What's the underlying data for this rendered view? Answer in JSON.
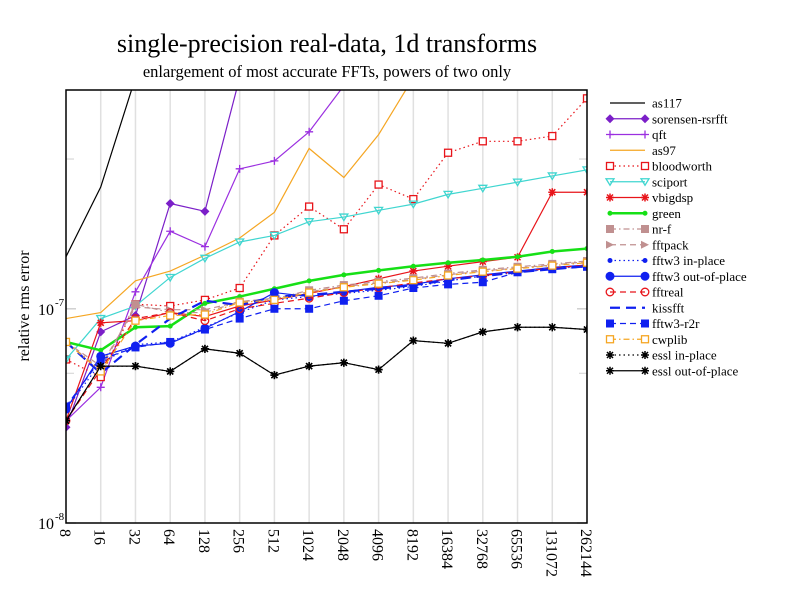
{
  "chart_data": {
    "type": "line",
    "title": "single-precision real-data, 1d transforms",
    "subtitle": "enlargement of most accurate FFTs, powers of two only",
    "xlabel": "",
    "ylabel": "relative rms error",
    "yscale": "log",
    "ylim": [
      1e-08,
      1.05e-06
    ],
    "y_ticks": [
      {
        "mantissa": "10",
        "exponent": "-8",
        "value": 1e-08
      },
      {
        "mantissa": "10",
        "exponent": "-7",
        "value": 1e-07
      }
    ],
    "x": [
      "8",
      "16",
      "32",
      "64",
      "128",
      "256",
      "512",
      "1024",
      "2048",
      "4096",
      "8192",
      "16384",
      "32768",
      "65536",
      "131072",
      "262144"
    ],
    "grid": "vertical",
    "legend_position": "right",
    "series": [
      {
        "name": "as117",
        "color": "#000000",
        "line": "solid",
        "marker": "none",
        "values": [
          1.75e-07,
          3.7e-07,
          1.2e-06,
          null,
          null,
          null,
          null,
          null,
          null,
          null,
          null,
          null,
          null,
          null,
          null,
          null
        ]
      },
      {
        "name": "sorensen-rsrfft",
        "color": "#7b1fc8",
        "line": "solid",
        "marker": "diamond",
        "values": [
          2.8e-08,
          7.8e-08,
          9.3e-08,
          3.1e-07,
          2.85e-07,
          1.2e-06,
          null,
          null,
          null,
          null,
          null,
          null,
          null,
          null,
          null,
          null
        ]
      },
      {
        "name": "qft",
        "color": "#9b2fe0",
        "line": "solid",
        "marker": "plus",
        "values": [
          3e-08,
          4.3e-08,
          1.2e-07,
          2.3e-07,
          1.95e-07,
          4.5e-07,
          4.9e-07,
          6.7e-07,
          1.1e-06,
          null,
          null,
          null,
          null,
          null,
          null,
          null
        ]
      },
      {
        "name": "as97",
        "color": "#f5a623",
        "line": "solid",
        "marker": "none",
        "values": [
          9e-08,
          9.6e-08,
          1.35e-07,
          1.5e-07,
          1.78e-07,
          2.14e-07,
          2.82e-07,
          5.6e-07,
          4.1e-07,
          6.5e-07,
          1.2e-06,
          null,
          null,
          null,
          null,
          null
        ]
      },
      {
        "name": "bloodworth",
        "color": "#e8141a",
        "line": "dotted",
        "marker": "square-open",
        "values": [
          5.8e-08,
          4.8e-08,
          1.05e-07,
          1.03e-07,
          1.1e-07,
          1.25e-07,
          2.2e-07,
          3e-07,
          2.35e-07,
          3.8e-07,
          3.25e-07,
          5.35e-07,
          6.05e-07,
          6.05e-07,
          6.4e-07,
          9.6e-07
        ]
      },
      {
        "name": "sciport",
        "color": "#40d6d0",
        "line": "solid",
        "marker": "triangle-down",
        "values": [
          5.8e-08,
          9e-08,
          1.03e-07,
          1.4e-07,
          1.72e-07,
          2.05e-07,
          2.2e-07,
          2.55e-07,
          2.68e-07,
          2.88e-07,
          3.08e-07,
          3.42e-07,
          3.65e-07,
          3.9e-07,
          4.17e-07,
          4.45e-07
        ]
      },
      {
        "name": "vbigdsp",
        "color": "#e8141a",
        "line": "solid",
        "marker": "star",
        "values": [
          3e-08,
          8.6e-08,
          8.8e-08,
          9.6e-08,
          9.2e-08,
          1.03e-07,
          1.1e-07,
          1.18e-07,
          1.27e-07,
          1.38e-07,
          1.5e-07,
          1.58e-07,
          1.66e-07,
          1.74e-07,
          3.5e-07,
          3.5e-07
        ]
      },
      {
        "name": "green",
        "color": "#16e016",
        "line": "solid-thick",
        "marker": "dot-small",
        "values": [
          7e-08,
          6.4e-08,
          8.2e-08,
          8.3e-08,
          1.06e-07,
          1.14e-07,
          1.24e-07,
          1.35e-07,
          1.44e-07,
          1.51e-07,
          1.58e-07,
          1.64e-07,
          1.69e-07,
          1.75e-07,
          1.85e-07,
          1.91e-07
        ]
      },
      {
        "name": "nr-f",
        "color": "#c09090",
        "line": "dash-dot",
        "marker": "square-filled",
        "values": [
          7e-08,
          5.2e-08,
          1.05e-07,
          9.6e-08,
          9.6e-08,
          1.08e-07,
          1.11e-07,
          1.22e-07,
          1.29e-07,
          1.34e-07,
          1.39e-07,
          1.46e-07,
          1.52e-07,
          1.57e-07,
          1.62e-07,
          1.67e-07
        ]
      },
      {
        "name": "fftpack",
        "color": "#c09090",
        "line": "dashed",
        "marker": "triangle-right",
        "values": [
          7e-08,
          5.4e-08,
          1.02e-07,
          9.9e-08,
          9.9e-08,
          1.08e-07,
          1.12e-07,
          1.2e-07,
          1.27e-07,
          1.32e-07,
          1.37e-07,
          1.44e-07,
          1.5e-07,
          1.55e-07,
          1.6e-07,
          1.66e-07
        ]
      },
      {
        "name": "fftw3 in-place",
        "color": "#1020f0",
        "line": "dotted",
        "marker": "dot-small",
        "values": [
          3.4e-08,
          5.6e-08,
          6.8e-08,
          7e-08,
          8.2e-08,
          9.6e-08,
          1.1e-07,
          1.14e-07,
          1.18e-07,
          1.22e-07,
          1.27e-07,
          1.35e-07,
          1.42e-07,
          1.48e-07,
          1.54e-07,
          1.58e-07
        ]
      },
      {
        "name": "fftw3 out-of-place",
        "color": "#1020f0",
        "line": "solid",
        "marker": "dot-large",
        "values": [
          3.4e-08,
          6e-08,
          6.7e-08,
          6.9e-08,
          8.1e-08,
          9.7e-08,
          1.19e-07,
          1.14e-07,
          1.2e-07,
          1.26e-07,
          1.3e-07,
          1.38e-07,
          1.44e-07,
          1.5e-07,
          1.56e-07,
          1.6e-07
        ]
      },
      {
        "name": "fftreal",
        "color": "#e8141a",
        "line": "dashed",
        "marker": "circle-open",
        "values": [
          3e-08,
          5.2e-08,
          9e-08,
          9.6e-08,
          8.8e-08,
          1e-07,
          1.06e-07,
          1.12e-07,
          1.19e-07,
          1.25e-07,
          1.32e-07,
          1.38e-07,
          1.43e-07,
          1.49e-07,
          1.55e-07,
          1.6e-07
        ]
      },
      {
        "name": "kissfft",
        "color": "#1020f0",
        "line": "dashed-long",
        "marker": "none",
        "values": [
          7e-08,
          5e-08,
          6.8e-08,
          9e-08,
          1.09e-07,
          1.04e-07,
          1.14e-07,
          1.16e-07,
          1.2e-07,
          1.24e-07,
          1.29e-07,
          1.36e-07,
          1.42e-07,
          1.48e-07,
          1.53e-07,
          1.58e-07
        ]
      },
      {
        "name": "fftw3-r2r",
        "color": "#1020f0",
        "line": "dashed",
        "marker": "square-filled",
        "values": [
          3.5e-08,
          5.8e-08,
          6.6e-08,
          7e-08,
          8e-08,
          9e-08,
          1e-07,
          1e-07,
          1.09e-07,
          1.15e-07,
          1.25e-07,
          1.3e-07,
          1.33e-07,
          1.48e-07,
          1.53e-07,
          1.57e-07
        ]
      },
      {
        "name": "cwplib",
        "color": "#f5a623",
        "line": "dash-dot",
        "marker": "square-open",
        "values": [
          7e-08,
          5.1e-08,
          8.8e-08,
          9.3e-08,
          9.4e-08,
          1.07e-07,
          1.1e-07,
          1.19e-07,
          1.26e-07,
          1.31e-07,
          1.36e-07,
          1.43e-07,
          1.49e-07,
          1.54e-07,
          1.59e-07,
          1.64e-07
        ]
      },
      {
        "name": "essl in-place",
        "color": "#000000",
        "line": "dotted",
        "marker": "star",
        "values": [
          3e-08,
          5.4e-08,
          5.4e-08,
          5.1e-08,
          6.5e-08,
          6.2e-08,
          4.9e-08,
          5.4e-08,
          5.6e-08,
          5.2e-08,
          7.1e-08,
          6.9e-08,
          7.8e-08,
          8.2e-08,
          8.2e-08,
          8e-08
        ]
      },
      {
        "name": "essl out-of-place",
        "color": "#000000",
        "line": "solid",
        "marker": "star",
        "values": [
          3e-08,
          5.4e-08,
          5.4e-08,
          5.1e-08,
          6.5e-08,
          6.2e-08,
          4.9e-08,
          5.4e-08,
          5.6e-08,
          5.2e-08,
          7.1e-08,
          6.9e-08,
          7.8e-08,
          8.2e-08,
          8.2e-08,
          8e-08
        ]
      }
    ]
  }
}
